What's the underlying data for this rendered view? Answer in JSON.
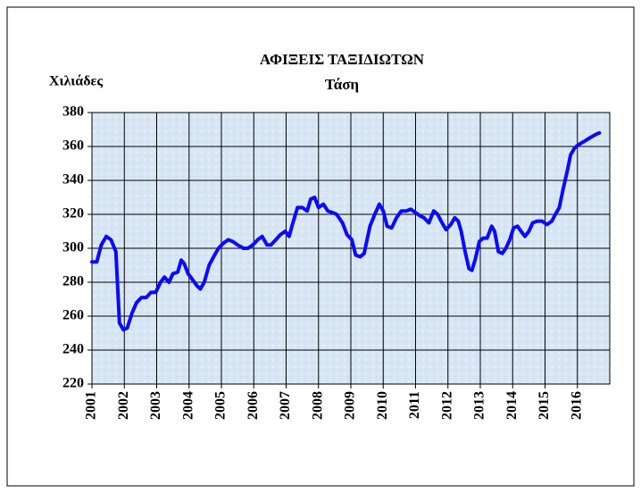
{
  "chart_data": {
    "type": "line",
    "title": "ΑΦΙΞΕΙΣ ΤΑΞΙΔΙΩΤΩΝ",
    "subtitle": "Τάση",
    "y_label": "Χιλιάδες",
    "xlim": [
      2001,
      2017
    ],
    "xticks": [
      2001,
      2002,
      2003,
      2004,
      2005,
      2006,
      2007,
      2008,
      2009,
      2010,
      2011,
      2012,
      2013,
      2014,
      2015,
      2016
    ],
    "ylim": [
      220,
      380
    ],
    "yticks": [
      220,
      240,
      260,
      280,
      300,
      320,
      340,
      360,
      380
    ],
    "grid": true,
    "series": [
      {
        "name": "Τάση",
        "color": "#0a0aff",
        "x": [
          2001.0,
          2001.15,
          2001.29,
          2001.44,
          2001.59,
          2001.74,
          2001.85,
          2001.97,
          2002.09,
          2002.24,
          2002.38,
          2002.53,
          2002.68,
          2002.82,
          2002.97,
          2003.12,
          2003.24,
          2003.38,
          2003.5,
          2003.65,
          2003.76,
          2003.85,
          2003.97,
          2004.09,
          2004.24,
          2004.35,
          2004.47,
          2004.62,
          2004.76,
          2004.91,
          2005.06,
          2005.21,
          2005.35,
          2005.5,
          2005.68,
          2005.82,
          2005.97,
          2006.12,
          2006.26,
          2006.41,
          2006.53,
          2006.68,
          2006.82,
          2006.97,
          2007.09,
          2007.21,
          2007.35,
          2007.5,
          2007.65,
          2007.76,
          2007.88,
          2008.0,
          2008.15,
          2008.29,
          2008.44,
          2008.56,
          2008.74,
          2008.88,
          2009.03,
          2009.15,
          2009.29,
          2009.41,
          2009.59,
          2009.74,
          2009.88,
          2010.0,
          2010.12,
          2010.26,
          2010.41,
          2010.56,
          2010.71,
          2010.85,
          2011.0,
          2011.15,
          2011.26,
          2011.41,
          2011.56,
          2011.68,
          2011.79,
          2011.94,
          2012.09,
          2012.21,
          2012.32,
          2012.41,
          2012.53,
          2012.65,
          2012.74,
          2012.85,
          2012.97,
          2013.09,
          2013.21,
          2013.35,
          2013.44,
          2013.56,
          2013.68,
          2013.79,
          2013.91,
          2014.03,
          2014.15,
          2014.26,
          2014.38,
          2014.5,
          2014.62,
          2014.76,
          2014.91,
          2015.06,
          2015.21,
          2015.32,
          2015.44,
          2015.56,
          2015.68,
          2015.79,
          2015.91,
          2016.03,
          2016.21,
          2016.38,
          2016.56,
          2016.68
        ],
        "values": [
          292,
          292,
          302,
          307,
          305,
          298,
          256,
          252,
          253,
          262,
          268,
          271,
          271,
          274,
          274,
          280,
          283,
          280,
          285,
          286,
          293,
          291,
          285,
          282,
          278,
          276,
          280,
          290,
          295,
          300,
          303,
          305,
          304,
          302,
          300,
          300,
          302,
          305,
          307,
          302,
          302,
          305,
          308,
          310,
          307,
          315,
          324,
          324,
          322,
          329,
          330,
          324,
          326,
          322,
          321,
          320,
          315,
          308,
          305,
          296,
          295,
          297,
          313,
          320,
          326,
          322,
          313,
          312,
          318,
          322,
          322,
          323,
          321,
          319,
          318,
          315,
          322,
          320,
          316,
          311,
          314,
          318,
          316,
          310,
          298,
          288,
          287,
          294,
          304,
          306,
          306,
          313,
          310,
          298,
          297,
          300,
          305,
          312,
          313,
          310,
          307,
          310,
          315,
          316,
          316,
          314,
          316,
          320,
          324,
          335,
          345,
          355,
          359,
          361,
          363,
          365,
          367,
          368
        ]
      }
    ]
  }
}
